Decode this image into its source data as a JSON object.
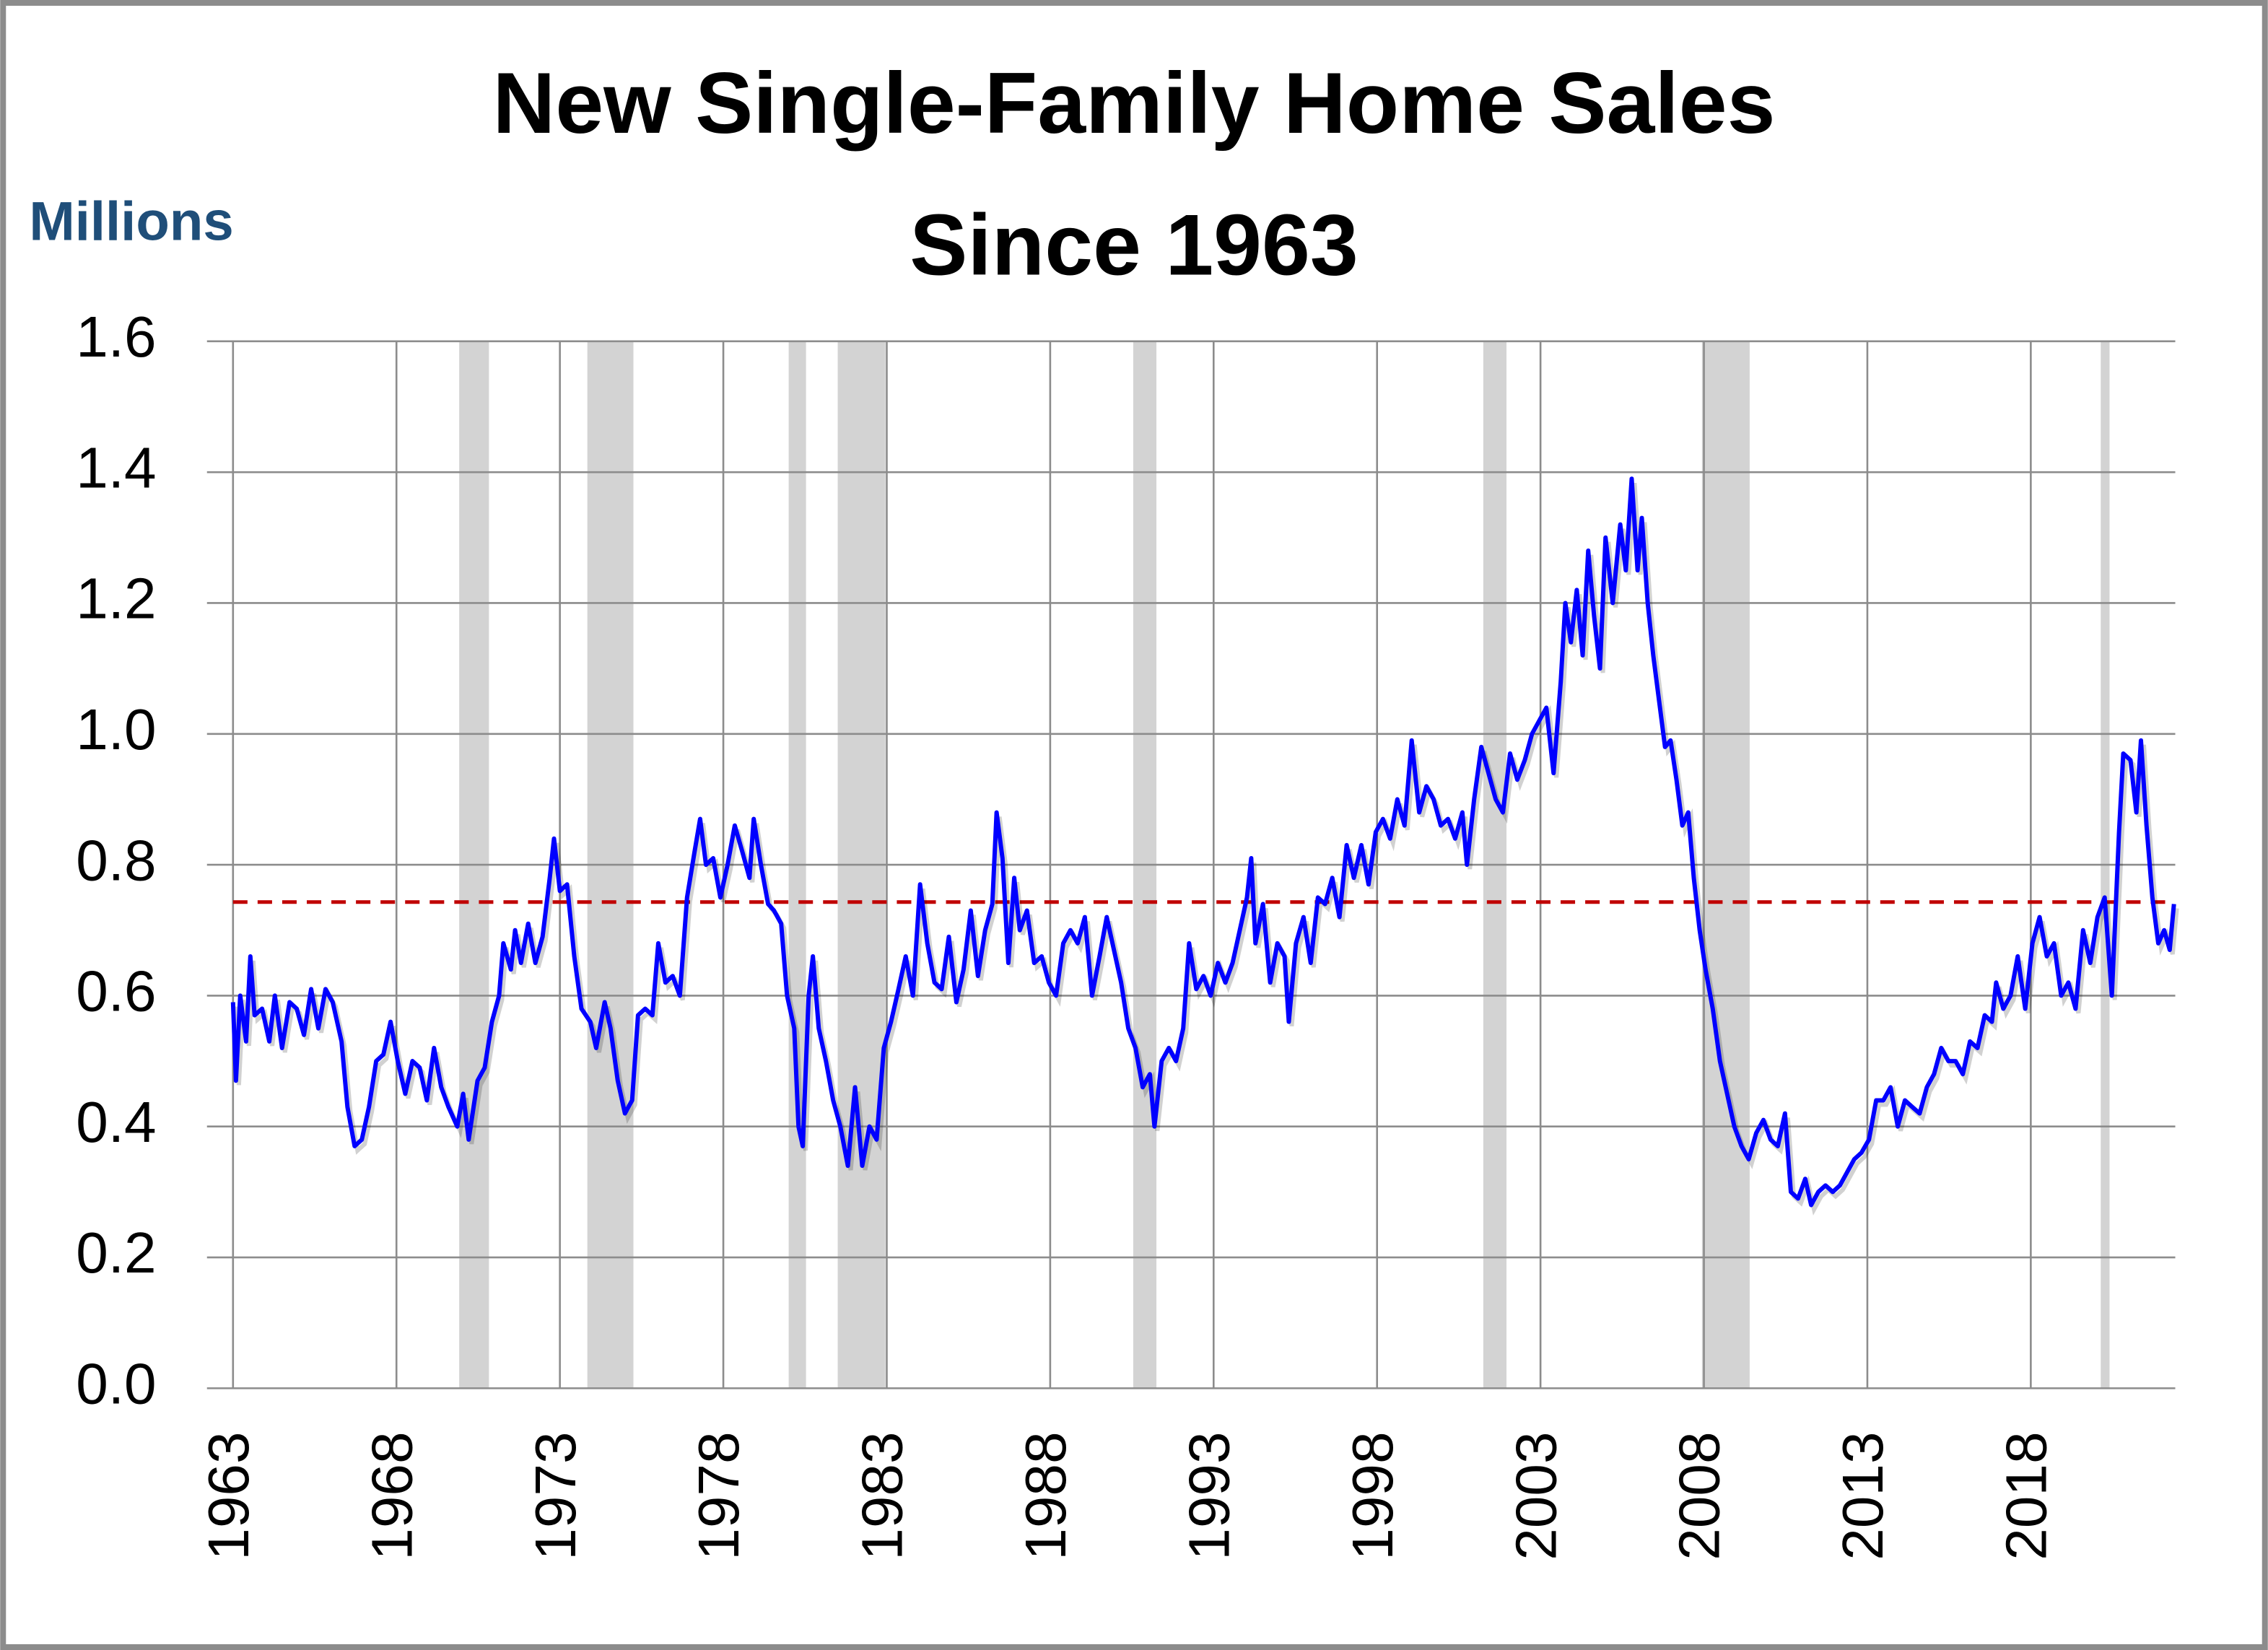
{
  "chart_data": {
    "type": "line",
    "title": [
      "New Single-Family Home Sales",
      "Since 1963"
    ],
    "y_label": "Millions",
    "x": [
      1963.0,
      1963.09,
      1963.22,
      1963.4,
      1963.53,
      1963.66,
      1963.89,
      1964.11,
      1964.28,
      1964.5,
      1964.73,
      1964.95,
      1965.17,
      1965.39,
      1965.61,
      1965.83,
      1966.05,
      1966.32,
      1966.5,
      1966.72,
      1966.94,
      1967.16,
      1967.38,
      1967.6,
      1967.82,
      1968.04,
      1968.27,
      1968.49,
      1968.71,
      1968.93,
      1969.15,
      1969.37,
      1969.59,
      1969.86,
      1970.04,
      1970.21,
      1970.48,
      1970.7,
      1970.92,
      1971.14,
      1971.27,
      1971.5,
      1971.63,
      1971.81,
      1972.03,
      1972.25,
      1972.47,
      1972.69,
      1972.82,
      1973.0,
      1973.22,
      1973.44,
      1973.66,
      1973.93,
      1974.11,
      1974.37,
      1974.55,
      1974.77,
      1974.99,
      1975.21,
      1975.39,
      1975.61,
      1975.83,
      1976.01,
      1976.23,
      1976.45,
      1976.67,
      1976.89,
      1977.12,
      1977.29,
      1977.47,
      1977.69,
      1977.91,
      1978.13,
      1978.35,
      1978.58,
      1978.8,
      1978.93,
      1979.15,
      1979.37,
      1979.55,
      1979.77,
      1979.95,
      1980.17,
      1980.3,
      1980.43,
      1980.61,
      1980.74,
      1980.92,
      1981.14,
      1981.36,
      1981.58,
      1981.81,
      1982.03,
      1982.25,
      1982.47,
      1982.69,
      1982.91,
      1983.13,
      1983.36,
      1983.58,
      1983.8,
      1984.02,
      1984.24,
      1984.46,
      1984.68,
      1984.9,
      1985.13,
      1985.35,
      1985.57,
      1985.79,
      1986.01,
      1986.23,
      1986.36,
      1986.54,
      1986.72,
      1986.9,
      1987.07,
      1987.29,
      1987.51,
      1987.74,
      1987.96,
      1988.18,
      1988.4,
      1988.62,
      1988.84,
      1989.06,
      1989.28,
      1989.51,
      1989.73,
      1989.95,
      1990.17,
      1990.39,
      1990.61,
      1990.83,
      1991.05,
      1991.19,
      1991.41,
      1991.63,
      1991.85,
      1992.07,
      1992.25,
      1992.47,
      1992.69,
      1992.91,
      1993.13,
      1993.36,
      1993.58,
      1993.8,
      1994.02,
      1994.15,
      1994.28,
      1994.51,
      1994.73,
      1994.95,
      1995.17,
      1995.3,
      1995.52,
      1995.75,
      1995.97,
      1996.19,
      1996.41,
      1996.63,
      1996.85,
      1997.07,
      1997.29,
      1997.52,
      1997.74,
      1997.96,
      1998.18,
      1998.4,
      1998.62,
      1998.84,
      1999.06,
      1999.29,
      1999.51,
      1999.73,
      1999.95,
      2000.17,
      2000.39,
      2000.61,
      2000.75,
      2000.97,
      2001.19,
      2001.41,
      2001.63,
      2001.85,
      2002.07,
      2002.29,
      2002.52,
      2002.74,
      2002.96,
      2003.18,
      2003.4,
      2003.62,
      2003.76,
      2003.93,
      2004.11,
      2004.29,
      2004.46,
      2004.64,
      2004.82,
      2004.99,
      2005.21,
      2005.44,
      2005.61,
      2005.79,
      2005.97,
      2006.1,
      2006.28,
      2006.45,
      2006.63,
      2006.81,
      2006.98,
      2007.16,
      2007.34,
      2007.52,
      2007.69,
      2007.87,
      2008.05,
      2008.27,
      2008.49,
      2008.71,
      2008.93,
      2009.15,
      2009.37,
      2009.6,
      2009.82,
      2010.04,
      2010.26,
      2010.48,
      2010.66,
      2010.88,
      2011.1,
      2011.28,
      2011.5,
      2011.72,
      2011.94,
      2012.16,
      2012.38,
      2012.6,
      2012.82,
      2013.05,
      2013.27,
      2013.49,
      2013.71,
      2013.93,
      2014.15,
      2014.37,
      2014.6,
      2014.82,
      2015.04,
      2015.26,
      2015.48,
      2015.7,
      2015.92,
      2016.14,
      2016.37,
      2016.59,
      2016.81,
      2016.94,
      2017.16,
      2017.38,
      2017.6,
      2017.83,
      2018.05,
      2018.27,
      2018.49,
      2018.71,
      2018.93,
      2019.15,
      2019.37,
      2019.6,
      2019.82,
      2020.04,
      2020.26,
      2020.48,
      2020.7,
      2020.83,
      2021.05,
      2021.23,
      2021.37,
      2021.54,
      2021.72,
      2021.9,
      2022.08,
      2022.25,
      2022.38
    ],
    "values": [
      0.59,
      0.47,
      0.6,
      0.53,
      0.66,
      0.57,
      0.58,
      0.53,
      0.6,
      0.52,
      0.59,
      0.58,
      0.54,
      0.61,
      0.55,
      0.61,
      0.59,
      0.53,
      0.43,
      0.37,
      0.38,
      0.43,
      0.5,
      0.51,
      0.56,
      0.5,
      0.45,
      0.5,
      0.49,
      0.44,
      0.52,
      0.46,
      0.43,
      0.4,
      0.45,
      0.38,
      0.47,
      0.49,
      0.56,
      0.6,
      0.68,
      0.64,
      0.7,
      0.65,
      0.71,
      0.65,
      0.69,
      0.78,
      0.84,
      0.76,
      0.77,
      0.66,
      0.58,
      0.56,
      0.52,
      0.59,
      0.55,
      0.47,
      0.42,
      0.44,
      0.57,
      0.58,
      0.57,
      0.68,
      0.62,
      0.63,
      0.6,
      0.75,
      0.82,
      0.87,
      0.8,
      0.81,
      0.75,
      0.8,
      0.86,
      0.82,
      0.78,
      0.87,
      0.8,
      0.74,
      0.73,
      0.71,
      0.6,
      0.55,
      0.4,
      0.37,
      0.6,
      0.66,
      0.55,
      0.5,
      0.44,
      0.4,
      0.34,
      0.46,
      0.34,
      0.4,
      0.38,
      0.52,
      0.56,
      0.61,
      0.66,
      0.6,
      0.77,
      0.68,
      0.62,
      0.61,
      0.69,
      0.59,
      0.64,
      0.73,
      0.63,
      0.7,
      0.74,
      0.88,
      0.81,
      0.65,
      0.78,
      0.7,
      0.73,
      0.65,
      0.66,
      0.62,
      0.6,
      0.68,
      0.7,
      0.68,
      0.72,
      0.6,
      0.66,
      0.72,
      0.67,
      0.62,
      0.55,
      0.52,
      0.46,
      0.48,
      0.4,
      0.5,
      0.52,
      0.5,
      0.55,
      0.68,
      0.61,
      0.63,
      0.6,
      0.65,
      0.62,
      0.65,
      0.7,
      0.75,
      0.81,
      0.68,
      0.74,
      0.62,
      0.68,
      0.66,
      0.56,
      0.68,
      0.72,
      0.65,
      0.75,
      0.74,
      0.78,
      0.72,
      0.83,
      0.78,
      0.83,
      0.77,
      0.85,
      0.87,
      0.84,
      0.9,
      0.86,
      0.99,
      0.88,
      0.92,
      0.9,
      0.86,
      0.87,
      0.84,
      0.88,
      0.8,
      0.9,
      0.98,
      0.94,
      0.9,
      0.88,
      0.97,
      0.93,
      0.96,
      1.0,
      1.02,
      1.04,
      0.94,
      1.08,
      1.2,
      1.14,
      1.22,
      1.12,
      1.28,
      1.18,
      1.1,
      1.3,
      1.2,
      1.32,
      1.25,
      1.39,
      1.25,
      1.33,
      1.2,
      1.12,
      1.05,
      0.98,
      0.99,
      0.93,
      0.86,
      0.88,
      0.78,
      0.7,
      0.64,
      0.58,
      0.5,
      0.45,
      0.4,
      0.37,
      0.35,
      0.39,
      0.41,
      0.38,
      0.37,
      0.42,
      0.3,
      0.29,
      0.32,
      0.28,
      0.3,
      0.31,
      0.3,
      0.31,
      0.33,
      0.35,
      0.36,
      0.38,
      0.44,
      0.44,
      0.46,
      0.4,
      0.44,
      0.43,
      0.42,
      0.46,
      0.48,
      0.52,
      0.5,
      0.5,
      0.48,
      0.53,
      0.52,
      0.57,
      0.56,
      0.62,
      0.58,
      0.6,
      0.66,
      0.58,
      0.68,
      0.72,
      0.66,
      0.68,
      0.6,
      0.62,
      0.58,
      0.7,
      0.65,
      0.72,
      0.75,
      0.6,
      0.85,
      0.97,
      0.96,
      0.88,
      0.99,
      0.86,
      0.75,
      0.68,
      0.7,
      0.67,
      0.74
    ],
    "color": "#0000ff",
    "reference_line": {
      "value": 0.743,
      "color": "#c00000"
    },
    "shaded_periods": [
      [
        1969.92,
        1970.83
      ],
      [
        1973.84,
        1975.25
      ],
      [
        1980.0,
        1980.53
      ],
      [
        1981.5,
        1982.96
      ],
      [
        1990.54,
        1991.25
      ],
      [
        2001.25,
        2001.96
      ],
      [
        2007.94,
        2009.4
      ],
      [
        2020.14,
        2020.41
      ]
    ],
    "shade_color": "#d3d3d3",
    "xlim": [
      1963,
      2022.42
    ],
    "xticks": [
      1963,
      1968,
      1973,
      1978,
      1983,
      1988,
      1993,
      1998,
      2003,
      2008,
      2013,
      2018
    ],
    "ylim": [
      0,
      1.6
    ],
    "yticks": [
      {
        "value": 0,
        "label": "0.0"
      },
      0.2,
      0.4,
      0.6,
      0.8,
      {
        "value": 1,
        "label": "1.0"
      },
      1.2,
      1.4,
      1.6
    ],
    "grid": true
  }
}
